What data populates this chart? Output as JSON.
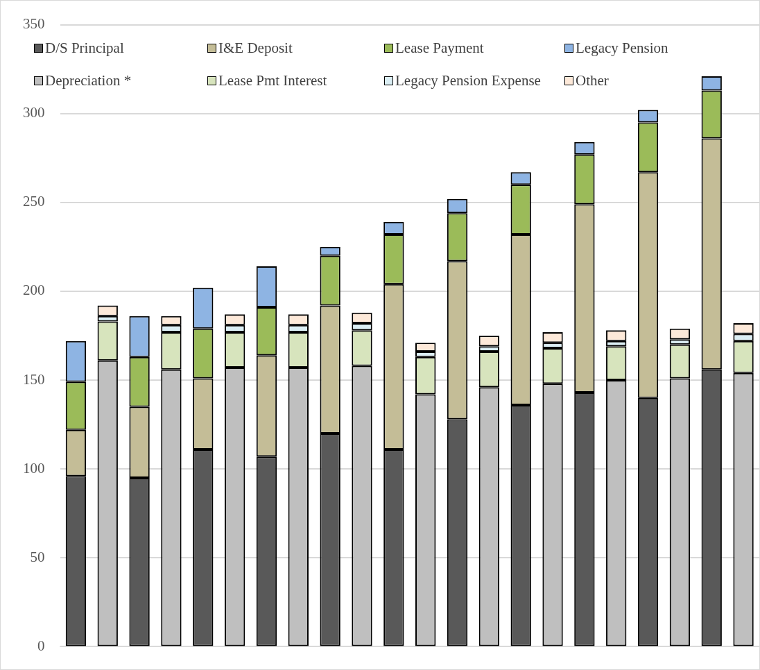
{
  "chart_data": {
    "type": "bar",
    "stacked": true,
    "categories": [
      null,
      null,
      null,
      null,
      null,
      null,
      null,
      null,
      null,
      null,
      null,
      null,
      null,
      null,
      null,
      null,
      null,
      null,
      null,
      null,
      null,
      null
    ],
    "ylim": [
      0,
      350
    ],
    "yticks": [
      0,
      50,
      100,
      150,
      200,
      250,
      300,
      350
    ],
    "grid": "y",
    "legend": "top",
    "tick_labels": "y",
    "series": [
      {
        "name": "D/S Principal",
        "color": "#595959",
        "values": [
          96,
          null,
          95,
          null,
          111,
          null,
          107,
          null,
          120,
          null,
          111,
          null,
          128,
          null,
          136,
          null,
          143,
          null,
          140,
          null,
          156,
          null
        ]
      },
      {
        "name": "I&E Deposit",
        "color": "#c4bd97",
        "values": [
          26,
          null,
          40,
          null,
          40,
          null,
          57,
          null,
          72,
          null,
          93,
          null,
          89,
          null,
          96,
          null,
          106,
          null,
          127,
          null,
          130,
          null
        ]
      },
      {
        "name": "Lease Payment",
        "color": "#9bbb59",
        "values": [
          27,
          null,
          28,
          null,
          28,
          null,
          27,
          null,
          28,
          null,
          28,
          null,
          27,
          null,
          28,
          null,
          28,
          null,
          28,
          null,
          27,
          null
        ]
      },
      {
        "name": "Legacy Pension",
        "color": "#8eb4e3",
        "values": [
          23,
          null,
          23,
          null,
          23,
          null,
          23,
          null,
          5,
          null,
          7,
          null,
          8,
          null,
          7,
          null,
          7,
          null,
          7,
          null,
          8,
          null
        ]
      },
      {
        "name": "Depreciation *",
        "color": "#bfbfbf",
        "values": [
          null,
          161,
          null,
          156,
          null,
          157,
          null,
          157,
          null,
          158,
          null,
          142,
          null,
          146,
          null,
          148,
          null,
          150,
          null,
          151,
          null,
          154
        ]
      },
      {
        "name": "Lease Pmt Interest",
        "color": "#d7e4bd",
        "values": [
          null,
          22,
          null,
          21,
          null,
          20,
          null,
          20,
          null,
          20,
          null,
          21,
          null,
          20,
          null,
          20,
          null,
          19,
          null,
          19,
          null,
          18
        ]
      },
      {
        "name": "Legacy Pension Expense",
        "color": "#dbeef4",
        "values": [
          null,
          3,
          null,
          4,
          null,
          4,
          null,
          4,
          null,
          4,
          null,
          3,
          null,
          3,
          null,
          3,
          null,
          3,
          null,
          3,
          null,
          4
        ]
      },
      {
        "name": "Other",
        "color": "#fde9d9",
        "values": [
          null,
          6,
          null,
          5,
          null,
          6,
          null,
          6,
          null,
          6,
          null,
          5,
          null,
          6,
          null,
          6,
          null,
          6,
          null,
          6,
          null,
          6
        ]
      }
    ]
  }
}
